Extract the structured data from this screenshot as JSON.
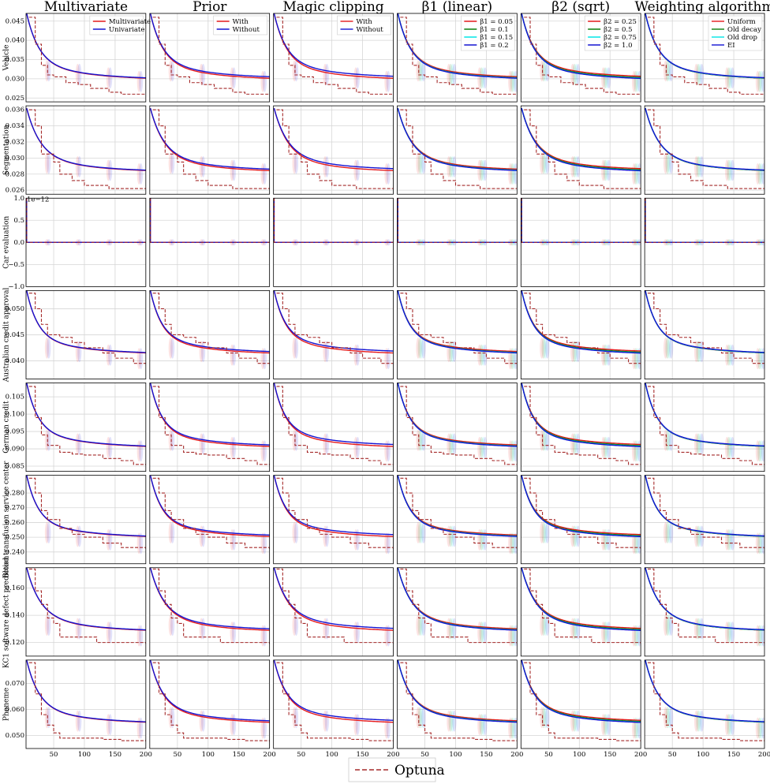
{
  "colors": {
    "red": "#e41a1c",
    "blue": "#1414d2",
    "green": "#0a7d0a",
    "cyan": "#00e5e5",
    "optuna": "#a52a2a",
    "grid": "#d6d6d6"
  },
  "bottom_legend": {
    "label": "Optuna"
  },
  "chart_data": {
    "type": "line",
    "layout": "grid of 8 rows x 6 columns, log-like decreasing best-so-far curves",
    "x": [
      10,
      20,
      30,
      40,
      50,
      60,
      70,
      80,
      90,
      100,
      110,
      120,
      130,
      140,
      150,
      160,
      170,
      180,
      190,
      200
    ],
    "xticks": [
      "50",
      "100",
      "150",
      "200"
    ],
    "columns": [
      {
        "title": "Multivariate",
        "series": [
          {
            "name": "Multivariate",
            "color_key": "red",
            "scale": 1.0
          },
          {
            "name": "Univariate",
            "color_key": "blue",
            "scale": 1.08
          }
        ]
      },
      {
        "title": "Prior",
        "series": [
          {
            "name": "With",
            "color_key": "red",
            "scale": 0.98
          },
          {
            "name": "Without",
            "color_key": "blue",
            "scale": 1.3
          }
        ]
      },
      {
        "title": "Magic clipping",
        "series": [
          {
            "name": "With",
            "color_key": "red",
            "scale": 0.98
          },
          {
            "name": "Without",
            "color_key": "blue",
            "scale": 1.4
          }
        ]
      },
      {
        "title": "β1 (linear)",
        "series": [
          {
            "name": "β1 = 0.05",
            "color_key": "red",
            "scale": 1.3
          },
          {
            "name": "β1 = 0.1",
            "color_key": "green",
            "scale": 1.1
          },
          {
            "name": "β1 = 0.15",
            "color_key": "cyan",
            "scale": 1.05
          },
          {
            "name": "β1 = 0.2",
            "color_key": "blue",
            "scale": 1.0
          }
        ]
      },
      {
        "title": "β2 (sqrt)",
        "series": [
          {
            "name": "β2 = 0.25",
            "color_key": "red",
            "scale": 1.4
          },
          {
            "name": "β2 = 0.5",
            "color_key": "green",
            "scale": 1.15
          },
          {
            "name": "β2 = 0.75",
            "color_key": "cyan",
            "scale": 1.0
          },
          {
            "name": "β2 = 1.0",
            "color_key": "blue",
            "scale": 0.95
          }
        ]
      },
      {
        "title": "Weighting algorithm",
        "series": [
          {
            "name": "Uniform",
            "color_key": "red",
            "scale": 1.0
          },
          {
            "name": "Old decay",
            "color_key": "green",
            "scale": 1.02
          },
          {
            "name": "Old drop",
            "color_key": "cyan",
            "scale": 1.05
          },
          {
            "name": "EI",
            "color_key": "blue",
            "scale": 1.1
          }
        ]
      }
    ],
    "rows": [
      {
        "label": "Vehicle",
        "ylim": [
          0.024,
          0.047
        ],
        "yticks": [
          "0.025",
          "0.030",
          "0.035",
          "0.040",
          "0.045"
        ],
        "ytick_values": [
          0.025,
          0.03,
          0.035,
          0.04,
          0.045
        ],
        "curve": {
          "start": 0.047,
          "base": 0.0283,
          "rate": 1.1
        },
        "optuna": [
          [
            10,
            0.046
          ],
          [
            20,
            0.039
          ],
          [
            30,
            0.0335
          ],
          [
            40,
            0.031
          ],
          [
            50,
            0.0305
          ],
          [
            70,
            0.029
          ],
          [
            90,
            0.0285
          ],
          [
            110,
            0.0275
          ],
          [
            140,
            0.0265
          ],
          [
            160,
            0.026
          ],
          [
            200,
            0.026
          ]
        ]
      },
      {
        "label": "Segmentation",
        "ylim": [
          0.0255,
          0.0365
        ],
        "yticks": [
          "0.026",
          "0.028",
          "0.030",
          "0.032",
          "0.034",
          "0.036"
        ],
        "ytick_values": [
          0.026,
          0.028,
          0.03,
          0.032,
          0.034,
          0.036
        ],
        "curve": {
          "start": 0.0362,
          "base": 0.0276,
          "rate": 1.0
        },
        "optuna": [
          [
            10,
            0.036
          ],
          [
            20,
            0.034
          ],
          [
            30,
            0.0305
          ],
          [
            50,
            0.0295
          ],
          [
            60,
            0.028
          ],
          [
            80,
            0.0272
          ],
          [
            100,
            0.0266
          ],
          [
            130,
            0.0266
          ],
          [
            140,
            0.0262
          ],
          [
            200,
            0.0262
          ]
        ]
      },
      {
        "label": "Car evaluation",
        "ylim": [
          -1.0,
          1.0
        ],
        "yticks": [
          "−1.0",
          "−0.5",
          "0.0",
          "0.5",
          "1.0"
        ],
        "ytick_values": [
          -1.0,
          -0.5,
          0.0,
          0.5,
          1.0
        ],
        "offset_text": "1e−12",
        "flat": true
      },
      {
        "label": "Australian credit approval",
        "ylim": [
          0.0365,
          0.0535
        ],
        "yticks": [
          "0.040",
          "0.045",
          "0.050"
        ],
        "ytick_values": [
          0.04,
          0.045,
          0.05
        ],
        "curve": {
          "start": 0.0535,
          "base": 0.0402,
          "rate": 1.2
        },
        "optuna": [
          [
            10,
            0.053
          ],
          [
            20,
            0.05
          ],
          [
            30,
            0.047
          ],
          [
            40,
            0.045
          ],
          [
            60,
            0.0445
          ],
          [
            80,
            0.0435
          ],
          [
            100,
            0.0425
          ],
          [
            130,
            0.0415
          ],
          [
            150,
            0.0405
          ],
          [
            180,
            0.0395
          ],
          [
            200,
            0.039
          ]
        ]
      },
      {
        "label": "German credit",
        "ylim": [
          0.0835,
          0.109
        ],
        "yticks": [
          "0.085",
          "0.090",
          "0.095",
          "0.100",
          "0.105"
        ],
        "ytick_values": [
          0.085,
          0.09,
          0.095,
          0.1,
          0.105
        ],
        "curve": {
          "start": 0.109,
          "base": 0.0887,
          "rate": 1.2
        },
        "optuna": [
          [
            10,
            0.108
          ],
          [
            20,
            0.099
          ],
          [
            30,
            0.094
          ],
          [
            40,
            0.091
          ],
          [
            60,
            0.089
          ],
          [
            80,
            0.0885
          ],
          [
            100,
            0.0882
          ],
          [
            130,
            0.0872
          ],
          [
            160,
            0.0866
          ],
          [
            180,
            0.0855
          ],
          [
            200,
            0.0855
          ]
        ]
      },
      {
        "label": "Blood transfusion service center",
        "ylim": [
          0.232,
          0.292
        ],
        "yticks": [
          "0.240",
          "0.250",
          "0.260",
          "0.270",
          "0.280"
        ],
        "ytick_values": [
          0.24,
          0.25,
          0.26,
          0.27,
          0.28
        ],
        "curve": {
          "start": 0.292,
          "base": 0.246,
          "rate": 1.2
        },
        "optuna": [
          [
            10,
            0.29
          ],
          [
            20,
            0.28
          ],
          [
            30,
            0.268
          ],
          [
            40,
            0.262
          ],
          [
            60,
            0.256
          ],
          [
            80,
            0.252
          ],
          [
            100,
            0.25
          ],
          [
            130,
            0.246
          ],
          [
            160,
            0.243
          ],
          [
            200,
            0.242
          ]
        ]
      },
      {
        "label": "KC1 software defect prediction",
        "ylim": [
          0.11,
          0.175
        ],
        "yticks": [
          "0.120",
          "0.140",
          "0.160"
        ],
        "ytick_values": [
          0.12,
          0.14,
          0.16
        ],
        "curve": {
          "start": 0.175,
          "base": 0.124,
          "rate": 1.0
        },
        "optuna": [
          [
            10,
            0.174
          ],
          [
            20,
            0.158
          ],
          [
            30,
            0.148
          ],
          [
            40,
            0.138
          ],
          [
            50,
            0.134
          ],
          [
            60,
            0.124
          ],
          [
            100,
            0.124
          ],
          [
            120,
            0.12
          ],
          [
            200,
            0.119
          ]
        ]
      },
      {
        "label": "Phoneme",
        "ylim": [
          0.045,
          0.079
        ],
        "yticks": [
          "0.050",
          "0.060",
          "0.070"
        ],
        "ytick_values": [
          0.05,
          0.06,
          0.07
        ],
        "curve": {
          "start": 0.079,
          "base": 0.0525,
          "rate": 1.1
        },
        "optuna": [
          [
            10,
            0.078
          ],
          [
            20,
            0.066
          ],
          [
            30,
            0.058
          ],
          [
            40,
            0.054
          ],
          [
            50,
            0.051
          ],
          [
            60,
            0.049
          ],
          [
            100,
            0.049
          ],
          [
            130,
            0.0485
          ],
          [
            160,
            0.048
          ],
          [
            200,
            0.0478
          ]
        ]
      }
    ]
  }
}
